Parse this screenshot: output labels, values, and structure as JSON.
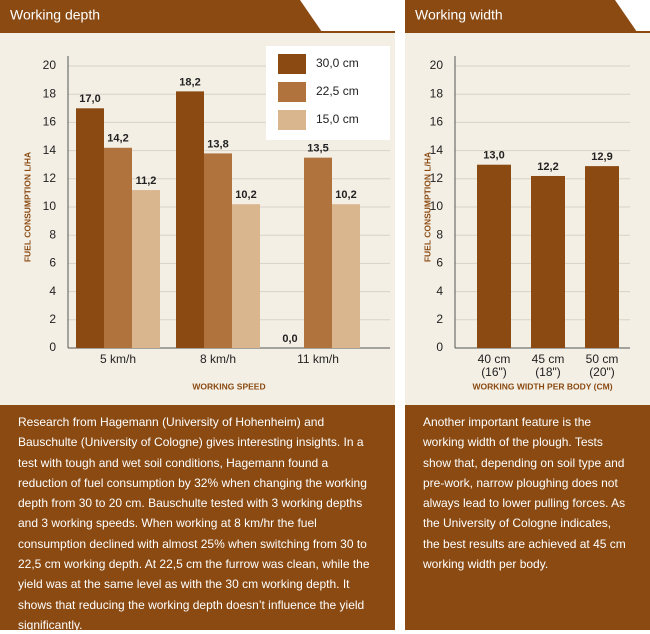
{
  "chart_data": [
    {
      "type": "bar",
      "title": "Working depth",
      "categories": [
        "5 km/h",
        "8 km/h",
        "11 km/h"
      ],
      "series": [
        {
          "name": "30,0 cm",
          "color": "#8a4a12",
          "values": [
            17.0,
            18.2,
            0.0
          ],
          "value_labels": [
            "17,0",
            "18,2",
            "0,0"
          ]
        },
        {
          "name": "22,5 cm",
          "color": "#b0733d",
          "values": [
            14.2,
            13.8,
            13.5
          ],
          "value_labels": [
            "14,2",
            "13,8",
            "13,5"
          ]
        },
        {
          "name": "15,0 cm",
          "color": "#dab68e",
          "values": [
            11.2,
            10.2,
            10.2
          ],
          "value_labels": [
            "11,2",
            "10,2",
            "10,2"
          ]
        }
      ],
      "ylabel": "FUEL CONSUMPTION L/HA",
      "xlabel": "WORKING SPEED",
      "ylim": [
        0,
        20
      ],
      "yticks": [
        0,
        2,
        4,
        6,
        8,
        10,
        12,
        14,
        16,
        18,
        20
      ],
      "grid": true,
      "legend": "upper right",
      "caption": "Research from Hagemann (University of Hohenheim) and Bauschulte (University of Cologne) gives interesting insights. In a test with tough and wet soil conditions, Hagemann found a reduction of fuel consumption by 32% when changing the working depth from 30 to 20 cm. Bauschulte tested with 3 working depths and 3 working speeds. When working at 8 km/hr the fuel consumption declined with almost 25% when switching from 30 to 22,5 cm working depth. At 22,5 cm the furrow was clean, while the yield was at the same level as with the 30 cm working depth. It shows that reducing the working depth doesn’t influence the yield significantly."
    },
    {
      "type": "bar",
      "title": "Working width",
      "categories": [
        "40 cm\n(16\")",
        "45 cm\n(18\")",
        "50 cm\n(20\")"
      ],
      "values": [
        13.0,
        12.2,
        12.9
      ],
      "value_labels": [
        "13,0",
        "12,2",
        "12,9"
      ],
      "color": "#8a4a12",
      "ylabel": "FUEL CONSUMPTION L/HA",
      "xlabel": "WORKING WIDTH PER BODY (CM)",
      "ylim": [
        0,
        20
      ],
      "yticks": [
        0,
        2,
        4,
        6,
        8,
        10,
        12,
        14,
        16,
        18,
        20
      ],
      "grid": true,
      "caption": "Another important feature is the working width of the plough. Tests show that, depending on soil type and pre-work, narrow ploughing does not always lead to lower pulling forces. As the University of Cologne indicates, the best results are achieved at 45 cm working width per body."
    }
  ]
}
